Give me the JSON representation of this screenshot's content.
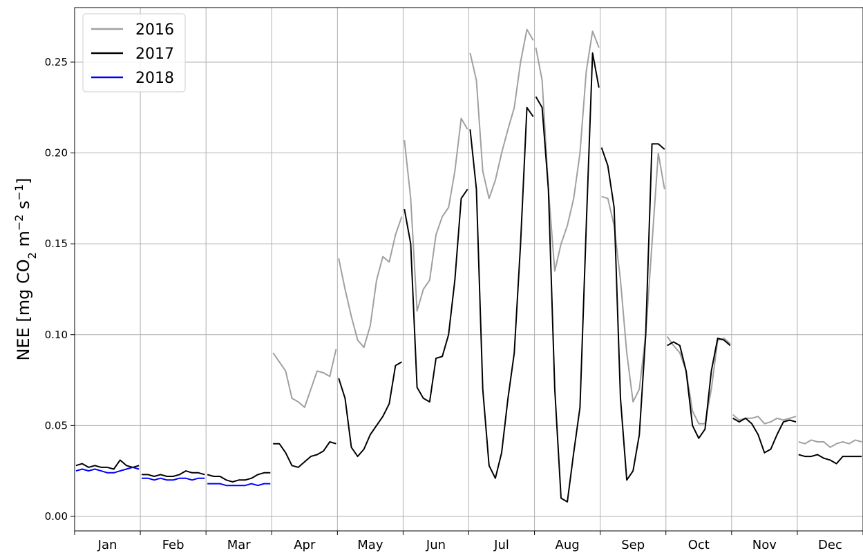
{
  "chart_data": {
    "type": "line",
    "title": "",
    "xlabel": "",
    "ylabel_parts": {
      "a": "NEE [mg CO",
      "b": "2",
      "c": " m",
      "d": "−2",
      "e": " s",
      "f": "−1",
      "g": "]"
    },
    "ylim": [
      -0.008,
      0.28
    ],
    "xlim": [
      0,
      12
    ],
    "yticks": [
      "0.00",
      "0.05",
      "0.10",
      "0.15",
      "0.20",
      "0.25"
    ],
    "ytick_values": [
      0,
      0.05,
      0.1,
      0.15,
      0.2,
      0.25
    ],
    "months": [
      "Jan",
      "Feb",
      "Mar",
      "Apr",
      "May",
      "Jun",
      "Jul",
      "Aug",
      "Sep",
      "Oct",
      "Nov",
      "Dec"
    ],
    "grid": true,
    "legend_position": "top-left",
    "series": [
      {
        "name": "2016",
        "color": "#a0a0a0",
        "segments": [
          {
            "month": 3,
            "x": [
              0,
              0.1,
              0.2,
              0.3,
              0.4,
              0.5,
              0.6,
              0.7,
              0.8,
              0.9,
              1
            ],
            "y": [
              0.09,
              0.085,
              0.08,
              0.065,
              0.063,
              0.06,
              0.07,
              0.08,
              0.079,
              0.077,
              0.092
            ]
          },
          {
            "month": 4,
            "x": [
              0,
              0.1,
              0.2,
              0.3,
              0.4,
              0.5,
              0.6,
              0.7,
              0.8,
              0.9,
              1
            ],
            "y": [
              0.142,
              0.125,
              0.11,
              0.097,
              0.093,
              0.105,
              0.13,
              0.143,
              0.14,
              0.155,
              0.165
            ]
          },
          {
            "month": 5,
            "x": [
              0,
              0.1,
              0.2,
              0.3,
              0.4,
              0.5,
              0.6,
              0.7,
              0.8,
              0.9,
              1
            ],
            "y": [
              0.207,
              0.175,
              0.113,
              0.125,
              0.13,
              0.155,
              0.165,
              0.17,
              0.19,
              0.219,
              0.213
            ]
          },
          {
            "month": 6,
            "x": [
              0,
              0.1,
              0.2,
              0.3,
              0.4,
              0.5,
              0.6,
              0.7,
              0.8,
              0.9,
              1
            ],
            "y": [
              0.255,
              0.24,
              0.19,
              0.175,
              0.185,
              0.2,
              0.213,
              0.225,
              0.25,
              0.268,
              0.262
            ]
          },
          {
            "month": 7,
            "x": [
              0,
              0.1,
              0.2,
              0.3,
              0.4,
              0.5,
              0.6,
              0.7,
              0.8,
              0.9,
              1
            ],
            "y": [
              0.258,
              0.24,
              0.18,
              0.135,
              0.15,
              0.16,
              0.175,
              0.2,
              0.245,
              0.267,
              0.258
            ]
          },
          {
            "month": 8,
            "x": [
              0,
              0.1,
              0.2,
              0.3,
              0.4,
              0.5,
              0.6,
              0.7,
              0.8,
              0.9,
              1
            ],
            "y": [
              0.176,
              0.175,
              0.16,
              0.13,
              0.09,
              0.063,
              0.07,
              0.1,
              0.15,
              0.2,
              0.18
            ]
          },
          {
            "month": 9,
            "x": [
              0,
              0.1,
              0.2,
              0.3,
              0.4,
              0.5,
              0.6,
              0.7,
              0.8,
              0.9,
              1
            ],
            "y": [
              0.099,
              0.094,
              0.09,
              0.08,
              0.058,
              0.051,
              0.051,
              0.07,
              0.097,
              0.098,
              0.095
            ]
          },
          {
            "month": 10,
            "x": [
              0,
              0.1,
              0.2,
              0.3,
              0.4,
              0.5,
              0.6,
              0.7,
              0.8,
              0.9,
              1
            ],
            "y": [
              0.056,
              0.053,
              0.054,
              0.054,
              0.055,
              0.051,
              0.052,
              0.054,
              0.053,
              0.054,
              0.055
            ]
          },
          {
            "month": 11,
            "x": [
              0,
              0.1,
              0.2,
              0.3,
              0.4,
              0.5,
              0.6,
              0.7,
              0.8,
              0.9,
              1
            ],
            "y": [
              0.041,
              0.04,
              0.042,
              0.041,
              0.041,
              0.038,
              0.04,
              0.041,
              0.04,
              0.042,
              0.041
            ]
          }
        ]
      },
      {
        "name": "2017",
        "color": "#000000",
        "segments": [
          {
            "month": 0,
            "x": [
              0,
              0.1,
              0.2,
              0.3,
              0.4,
              0.5,
              0.6,
              0.7,
              0.8,
              0.9,
              1
            ],
            "y": [
              0.028,
              0.029,
              0.027,
              0.028,
              0.027,
              0.027,
              0.026,
              0.031,
              0.028,
              0.027,
              0.028
            ]
          },
          {
            "month": 1,
            "x": [
              0,
              0.1,
              0.2,
              0.3,
              0.4,
              0.5,
              0.6,
              0.7,
              0.8,
              0.9,
              1
            ],
            "y": [
              0.023,
              0.023,
              0.022,
              0.023,
              0.022,
              0.022,
              0.023,
              0.025,
              0.024,
              0.024,
              0.023
            ]
          },
          {
            "month": 2,
            "x": [
              0,
              0.1,
              0.2,
              0.3,
              0.4,
              0.5,
              0.6,
              0.7,
              0.8,
              0.9,
              1
            ],
            "y": [
              0.023,
              0.022,
              0.022,
              0.02,
              0.019,
              0.02,
              0.02,
              0.021,
              0.023,
              0.024,
              0.024
            ]
          },
          {
            "month": 3,
            "x": [
              0,
              0.1,
              0.2,
              0.3,
              0.4,
              0.5,
              0.6,
              0.7,
              0.8,
              0.9,
              1
            ],
            "y": [
              0.04,
              0.04,
              0.035,
              0.028,
              0.027,
              0.03,
              0.033,
              0.034,
              0.036,
              0.041,
              0.04
            ]
          },
          {
            "month": 4,
            "x": [
              0,
              0.1,
              0.2,
              0.3,
              0.4,
              0.5,
              0.6,
              0.7,
              0.8,
              0.9,
              1
            ],
            "y": [
              0.076,
              0.065,
              0.038,
              0.033,
              0.037,
              0.045,
              0.05,
              0.055,
              0.062,
              0.083,
              0.085
            ]
          },
          {
            "month": 5,
            "x": [
              0,
              0.1,
              0.2,
              0.3,
              0.4,
              0.5,
              0.6,
              0.7,
              0.8,
              0.9,
              1
            ],
            "y": [
              0.169,
              0.15,
              0.071,
              0.065,
              0.063,
              0.087,
              0.088,
              0.1,
              0.13,
              0.175,
              0.18
            ]
          },
          {
            "month": 6,
            "x": [
              0,
              0.1,
              0.2,
              0.3,
              0.4,
              0.5,
              0.6,
              0.7,
              0.8,
              0.9,
              1
            ],
            "y": [
              0.213,
              0.18,
              0.07,
              0.028,
              0.021,
              0.035,
              0.065,
              0.09,
              0.15,
              0.225,
              0.22
            ]
          },
          {
            "month": 7,
            "x": [
              0,
              0.1,
              0.2,
              0.3,
              0.4,
              0.5,
              0.6,
              0.7,
              0.8,
              0.9,
              1
            ],
            "y": [
              0.231,
              0.225,
              0.18,
              0.07,
              0.01,
              0.008,
              0.035,
              0.06,
              0.16,
              0.255,
              0.236
            ]
          },
          {
            "month": 8,
            "x": [
              0,
              0.1,
              0.2,
              0.3,
              0.4,
              0.5,
              0.6,
              0.7,
              0.8,
              0.9,
              1
            ],
            "y": [
              0.203,
              0.193,
              0.17,
              0.065,
              0.02,
              0.025,
              0.045,
              0.1,
              0.205,
              0.205,
              0.202
            ]
          },
          {
            "month": 9,
            "x": [
              0,
              0.1,
              0.2,
              0.3,
              0.4,
              0.5,
              0.6,
              0.7,
              0.8,
              0.9,
              1
            ],
            "y": [
              0.094,
              0.096,
              0.094,
              0.08,
              0.05,
              0.043,
              0.048,
              0.08,
              0.098,
              0.097,
              0.094
            ]
          },
          {
            "month": 10,
            "x": [
              0,
              0.1,
              0.2,
              0.3,
              0.4,
              0.5,
              0.6,
              0.7,
              0.8,
              0.9,
              1
            ],
            "y": [
              0.054,
              0.052,
              0.054,
              0.051,
              0.045,
              0.035,
              0.037,
              0.045,
              0.052,
              0.053,
              0.052
            ]
          },
          {
            "month": 11,
            "x": [
              0,
              0.1,
              0.2,
              0.3,
              0.4,
              0.5,
              0.6,
              0.7,
              0.8,
              0.9,
              1
            ],
            "y": [
              0.034,
              0.033,
              0.033,
              0.034,
              0.032,
              0.031,
              0.029,
              0.033,
              0.033,
              0.033,
              0.033
            ]
          }
        ]
      },
      {
        "name": "2018",
        "color": "#0000ff",
        "segments": [
          {
            "month": 0,
            "x": [
              0,
              0.1,
              0.2,
              0.3,
              0.4,
              0.5,
              0.6,
              0.7,
              0.8,
              0.9,
              1
            ],
            "y": [
              0.025,
              0.026,
              0.025,
              0.026,
              0.025,
              0.024,
              0.024,
              0.025,
              0.026,
              0.027,
              0.026
            ]
          },
          {
            "month": 1,
            "x": [
              0,
              0.1,
              0.2,
              0.3,
              0.4,
              0.5,
              0.6,
              0.7,
              0.8,
              0.9,
              1
            ],
            "y": [
              0.021,
              0.021,
              0.02,
              0.021,
              0.02,
              0.02,
              0.021,
              0.021,
              0.02,
              0.021,
              0.021
            ]
          },
          {
            "month": 2,
            "x": [
              0,
              0.1,
              0.2,
              0.3,
              0.4,
              0.5,
              0.6,
              0.7,
              0.8,
              0.9,
              1
            ],
            "y": [
              0.018,
              0.018,
              0.018,
              0.017,
              0.017,
              0.017,
              0.017,
              0.018,
              0.017,
              0.018,
              0.018
            ]
          }
        ]
      }
    ]
  }
}
